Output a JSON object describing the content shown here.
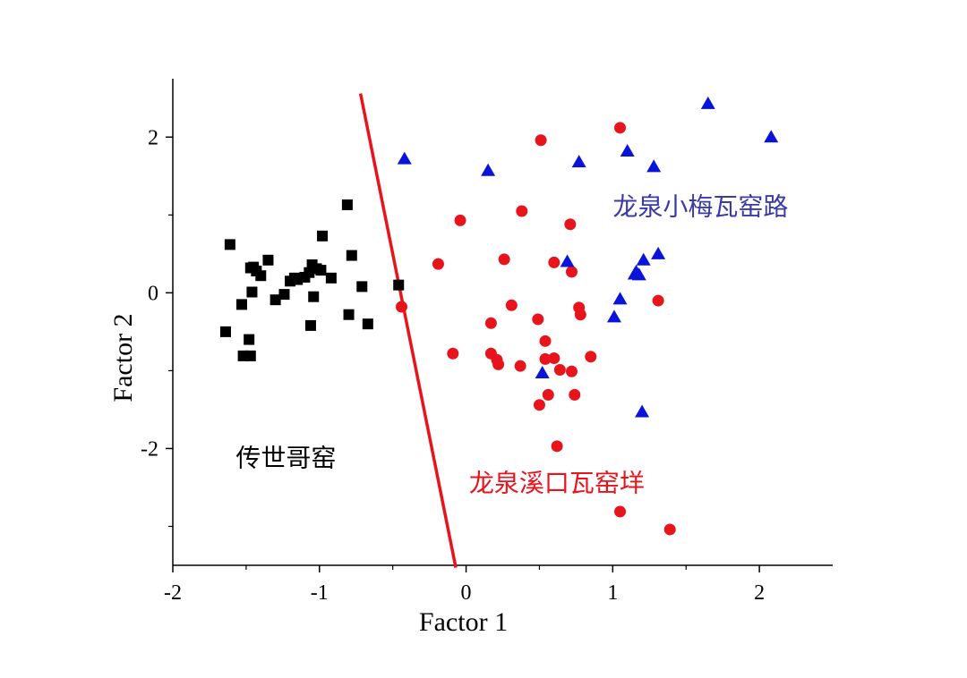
{
  "chart_data": {
    "type": "scatter",
    "xlabel": "Factor 1",
    "ylabel": "Factor 2",
    "xlim": [
      -2,
      2.5
    ],
    "ylim": [
      -3.5,
      2.75
    ],
    "xticks": [
      -2,
      -1,
      0,
      1,
      2
    ],
    "xtick_labels": [
      "-2",
      "-1",
      "0",
      "1",
      "2"
    ],
    "yticks": [
      -2,
      0,
      2
    ],
    "ytick_labels": [
      "-2",
      "0",
      "2"
    ],
    "grid": false,
    "series": [
      {
        "marker": "square",
        "color": "#000000",
        "points": [
          [
            -0.81,
            1.13
          ],
          [
            -1.61,
            0.62
          ],
          [
            -0.98,
            0.73
          ],
          [
            -0.78,
            0.48
          ],
          [
            -1.35,
            0.42
          ],
          [
            -1.45,
            0.33
          ],
          [
            -1.47,
            0.32
          ],
          [
            -1.43,
            0.28
          ],
          [
            -1.4,
            0.22
          ],
          [
            -1.05,
            0.36
          ],
          [
            -1.02,
            0.31
          ],
          [
            -0.99,
            0.29
          ],
          [
            -1.07,
            0.26
          ],
          [
            -1.1,
            0.2
          ],
          [
            -1.15,
            0.17
          ],
          [
            -1.17,
            0.19
          ],
          [
            -1.2,
            0.15
          ],
          [
            -0.92,
            0.19
          ],
          [
            -0.71,
            0.08
          ],
          [
            -1.46,
            0.01
          ],
          [
            -1.24,
            -0.02
          ],
          [
            -1.04,
            -0.05
          ],
          [
            -1.3,
            -0.09
          ],
          [
            -1.53,
            -0.15
          ],
          [
            -0.8,
            -0.28
          ],
          [
            -0.67,
            -0.4
          ],
          [
            -1.06,
            -0.42
          ],
          [
            -1.64,
            -0.5
          ],
          [
            -1.48,
            -0.6
          ],
          [
            -1.52,
            -0.81
          ],
          [
            -1.47,
            -0.81
          ],
          [
            -0.46,
            0.1
          ]
        ]
      },
      {
        "marker": "circle",
        "color": "#e8141c",
        "points": [
          [
            1.05,
            2.12
          ],
          [
            0.51,
            1.96
          ],
          [
            0.38,
            1.05
          ],
          [
            -0.04,
            0.93
          ],
          [
            0.71,
            0.88
          ],
          [
            0.26,
            0.43
          ],
          [
            0.6,
            0.39
          ],
          [
            -0.19,
            0.37
          ],
          [
            0.72,
            0.27
          ],
          [
            1.31,
            -0.1
          ],
          [
            0.31,
            -0.16
          ],
          [
            -0.44,
            -0.18
          ],
          [
            0.77,
            -0.19
          ],
          [
            0.78,
            -0.28
          ],
          [
            0.49,
            -0.34
          ],
          [
            0.17,
            -0.39
          ],
          [
            0.54,
            -0.62
          ],
          [
            -0.09,
            -0.78
          ],
          [
            0.17,
            -0.78
          ],
          [
            0.21,
            -0.86
          ],
          [
            0.54,
            -0.85
          ],
          [
            0.6,
            -0.84
          ],
          [
            0.85,
            -0.82
          ],
          [
            0.22,
            -0.92
          ],
          [
            0.37,
            -0.94
          ],
          [
            0.64,
            -0.99
          ],
          [
            0.72,
            -1.01
          ],
          [
            0.56,
            -1.31
          ],
          [
            0.74,
            -1.31
          ],
          [
            0.5,
            -1.44
          ],
          [
            0.62,
            -1.97
          ],
          [
            1.05,
            -2.81
          ],
          [
            1.39,
            -3.04
          ]
        ]
      },
      {
        "marker": "triangle",
        "color": "#0a14d8",
        "points": [
          [
            1.65,
            2.43
          ],
          [
            2.08,
            2.0
          ],
          [
            1.1,
            1.82
          ],
          [
            0.77,
            1.68
          ],
          [
            1.28,
            1.62
          ],
          [
            -0.42,
            1.72
          ],
          [
            0.15,
            1.57
          ],
          [
            0.69,
            0.4
          ],
          [
            1.31,
            0.5
          ],
          [
            1.21,
            0.42
          ],
          [
            1.16,
            0.27
          ],
          [
            1.15,
            0.24
          ],
          [
            1.18,
            0.23
          ],
          [
            1.05,
            -0.08
          ],
          [
            1.01,
            -0.31
          ],
          [
            0.52,
            -1.03
          ],
          [
            1.2,
            -1.53
          ]
        ]
      }
    ],
    "boundary_line": {
      "color": "#e8141c",
      "from": [
        -0.72,
        2.56
      ],
      "to": [
        -0.07,
        -3.53
      ]
    },
    "annotations": [
      {
        "text": "龙泉小梅瓦窑路",
        "x": 1.0,
        "y": 1.0,
        "color": "#3a3aa8"
      },
      {
        "text": "传世哥窑",
        "x": -1.57,
        "y": -2.23,
        "color": "#000000"
      },
      {
        "text": "龙泉溪口瓦窑垟",
        "x": 0.02,
        "y": -2.55,
        "color": "#e8141c"
      }
    ]
  }
}
